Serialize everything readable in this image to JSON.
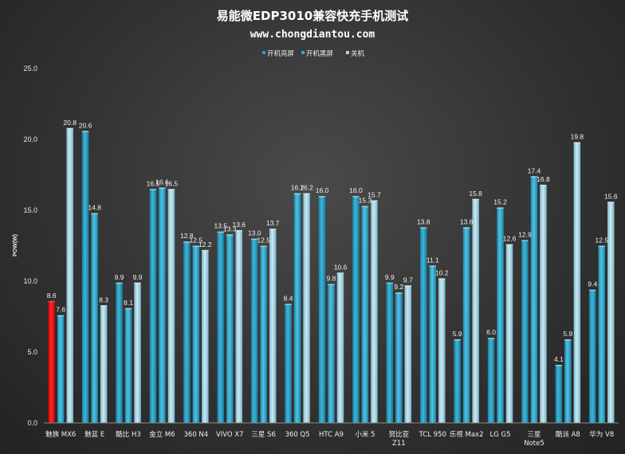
{
  "chart_data": {
    "type": "bar",
    "title": "易能微EDP3010兼容快充手机测试",
    "subtitle": "www.chongdiantou.com",
    "xlabel": "",
    "ylabel": "POW(W)",
    "ylim": [
      0,
      25
    ],
    "yticks": [
      "0.0",
      "5.0",
      "10.0",
      "15.0",
      "20.0",
      "25.0"
    ],
    "grid": false,
    "legend_position": "top-center",
    "categories": [
      [
        "魅族 MX6"
      ],
      [
        "魅蓝 E"
      ],
      [
        "酷比 H3"
      ],
      [
        "金立 M6"
      ],
      [
        "360 N4"
      ],
      [
        "VIVO X7"
      ],
      [
        "三星 S6"
      ],
      [
        "360 Q5"
      ],
      [
        "HTC A9"
      ],
      [
        "小米 5"
      ],
      [
        "努比亚",
        "Z11"
      ],
      [
        "TCL 950"
      ],
      [
        "乐视 Max2"
      ],
      [
        "LG G5"
      ],
      [
        "三星",
        "Note5"
      ],
      [
        "酷派 A8"
      ],
      [
        "华为 V8"
      ]
    ],
    "series": [
      {
        "name": "开机亮屏",
        "color": "#2b9fc2",
        "values": [
          8.6,
          20.6,
          9.9,
          16.5,
          12.8,
          13.5,
          13.0,
          8.4,
          16.0,
          16.0,
          9.9,
          13.8,
          5.9,
          6.0,
          12.9,
          4.1,
          9.4
        ],
        "labels": [
          "8.6",
          "20.6",
          "9.9",
          "16.5",
          "12.8",
          "13.5",
          "13.0",
          "8.4",
          "16.0",
          "16.0",
          "9.9",
          "13.8",
          "5.9",
          "6.0",
          "12.9",
          "4.1",
          "9.4"
        ]
      },
      {
        "name": "开机黑屏",
        "color": "#36aad0",
        "values": [
          7.6,
          14.8,
          8.1,
          16.6,
          12.5,
          13.3,
          12.5,
          16.2,
          9.8,
          15.3,
          9.2,
          11.1,
          13.8,
          15.2,
          17.4,
          5.9,
          12.5
        ],
        "labels": [
          "7.6",
          "14.8",
          "8.1",
          "16.6",
          "12.5",
          "13.3",
          "12.5",
          "16.2",
          "9.8",
          "15.3",
          "9.2",
          "11.1",
          "13.8",
          "15.2",
          "17.4",
          "5.9",
          "12.5"
        ]
      },
      {
        "name": "关机",
        "color": "#a9d6e6",
        "values": [
          20.8,
          8.3,
          9.9,
          16.5,
          12.2,
          13.6,
          13.7,
          16.2,
          10.6,
          15.7,
          9.7,
          10.2,
          15.8,
          12.6,
          16.8,
          19.8,
          15.6
        ],
        "labels": [
          "20.8",
          "8.3",
          "9.9",
          "16.5",
          "12.2",
          "13.6",
          "13.7",
          "16.2",
          "10.6",
          "15.7",
          "9.7",
          "10.2",
          "15.8",
          "12.6",
          "16.8",
          "19.8",
          "15.6"
        ]
      }
    ],
    "highlight_color": "#ee1111",
    "highlighted_bars": [
      {
        "category": 0,
        "value": 8.6
      },
      {
        "category": 1,
        "value": 7.6
      }
    ]
  }
}
